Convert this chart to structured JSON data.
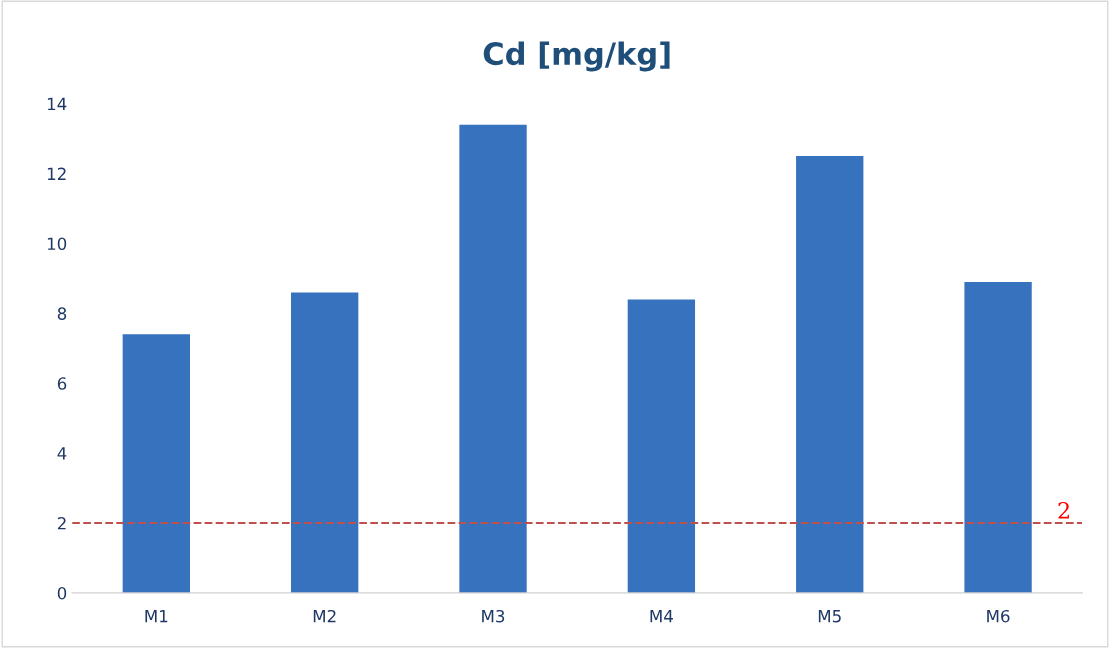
{
  "chart_data": {
    "type": "bar",
    "title": "Cd [mg/kg]",
    "categories": [
      "M1",
      "M2",
      "M3",
      "M4",
      "M5",
      "M6"
    ],
    "values": [
      7.4,
      8.6,
      13.4,
      8.4,
      12.5,
      8.9
    ],
    "color": "#3672bd",
    "ylim": [
      0,
      14
    ],
    "yticks": [
      0,
      2,
      4,
      6,
      8,
      10,
      12,
      14
    ],
    "grid": false,
    "ref_lines": [
      {
        "axis": "y",
        "value": 2,
        "label": "2",
        "color": "#c0504d",
        "line_style": "dashed"
      }
    ]
  }
}
